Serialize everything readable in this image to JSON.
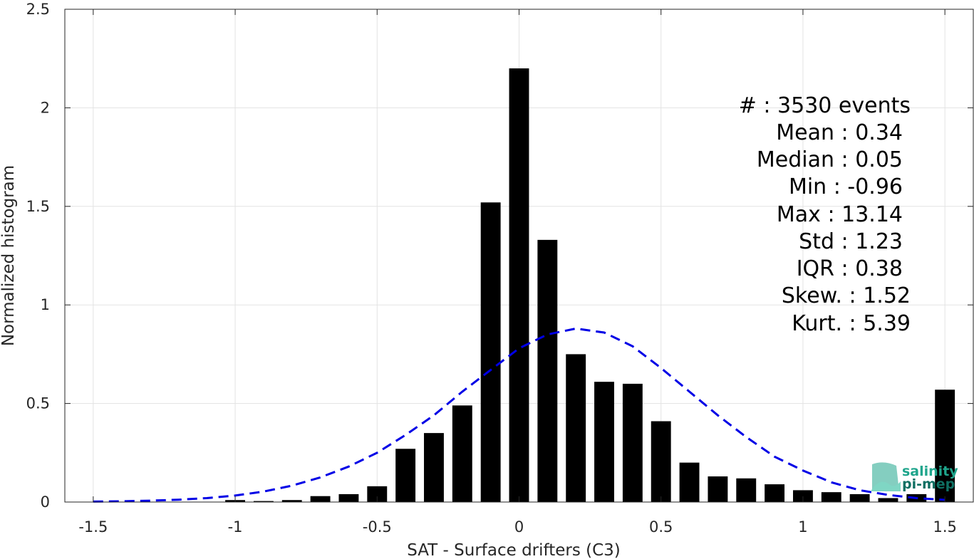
{
  "chart_data": {
    "type": "bar",
    "xlabel": "SAT - Surface drifters (C3)",
    "ylabel": "Normalized histogram",
    "xlim": [
      -1.6,
      1.6
    ],
    "ylim": [
      0,
      2.5
    ],
    "x_ticks": [
      -1.5,
      -1,
      -0.5,
      0,
      0.5,
      1,
      1.5
    ],
    "x_tick_labels": [
      "-1.5",
      "-1",
      "-0.5",
      "0",
      "0.5",
      "1",
      "1.5"
    ],
    "y_ticks": [
      0,
      0.5,
      1,
      1.5,
      2,
      2.5
    ],
    "y_tick_labels": [
      "0",
      "0.5",
      "1",
      "1.5",
      "2",
      "2.5"
    ],
    "grid": true,
    "bar_color": "#000000",
    "bars": {
      "x": [
        -1.0,
        -0.9,
        -0.8,
        -0.7,
        -0.6,
        -0.5,
        -0.4,
        -0.3,
        -0.2,
        -0.1,
        0.0,
        0.1,
        0.2,
        0.3,
        0.4,
        0.5,
        0.6,
        0.7,
        0.8,
        0.9,
        1.0,
        1.1,
        1.2,
        1.3,
        1.4,
        1.5
      ],
      "values": [
        0.01,
        0.005,
        0.01,
        0.03,
        0.04,
        0.08,
        0.27,
        0.35,
        0.49,
        1.52,
        2.2,
        1.33,
        0.75,
        0.61,
        0.6,
        0.41,
        0.2,
        0.13,
        0.12,
        0.09,
        0.06,
        0.05,
        0.04,
        0.02,
        0.04,
        0.57
      ]
    },
    "fit_curve": {
      "style": "dashed",
      "color": "#0000e6",
      "x": [
        -1.5,
        -1.4,
        -1.3,
        -1.2,
        -1.1,
        -1.0,
        -0.9,
        -0.8,
        -0.7,
        -0.6,
        -0.5,
        -0.4,
        -0.3,
        -0.2,
        -0.1,
        0.0,
        0.1,
        0.2,
        0.3,
        0.4,
        0.5,
        0.6,
        0.7,
        0.8,
        0.9,
        1.0,
        1.1,
        1.2,
        1.3,
        1.4,
        1.5
      ],
      "y": [
        0.002,
        0.004,
        0.007,
        0.012,
        0.02,
        0.033,
        0.053,
        0.083,
        0.125,
        0.18,
        0.25,
        0.34,
        0.44,
        0.56,
        0.67,
        0.78,
        0.85,
        0.88,
        0.86,
        0.79,
        0.68,
        0.56,
        0.44,
        0.33,
        0.23,
        0.16,
        0.1,
        0.06,
        0.036,
        0.02,
        0.011
      ]
    },
    "stats": [
      {
        "label": "#  : 3530 events"
      },
      {
        "label": "Mean : 0.34"
      },
      {
        "label": "Median : 0.05"
      },
      {
        "label": "Min : -0.96"
      },
      {
        "label": "Max : 13.14"
      },
      {
        "label": "Std : 1.23"
      },
      {
        "label": "IQR : 0.38"
      },
      {
        "label": "Skew. : 1.52"
      },
      {
        "label": "Kurt. : 5.39"
      }
    ]
  },
  "logo": {
    "line1": "salinity",
    "line2": "pi-mep",
    "color": "#1fa58c"
  }
}
